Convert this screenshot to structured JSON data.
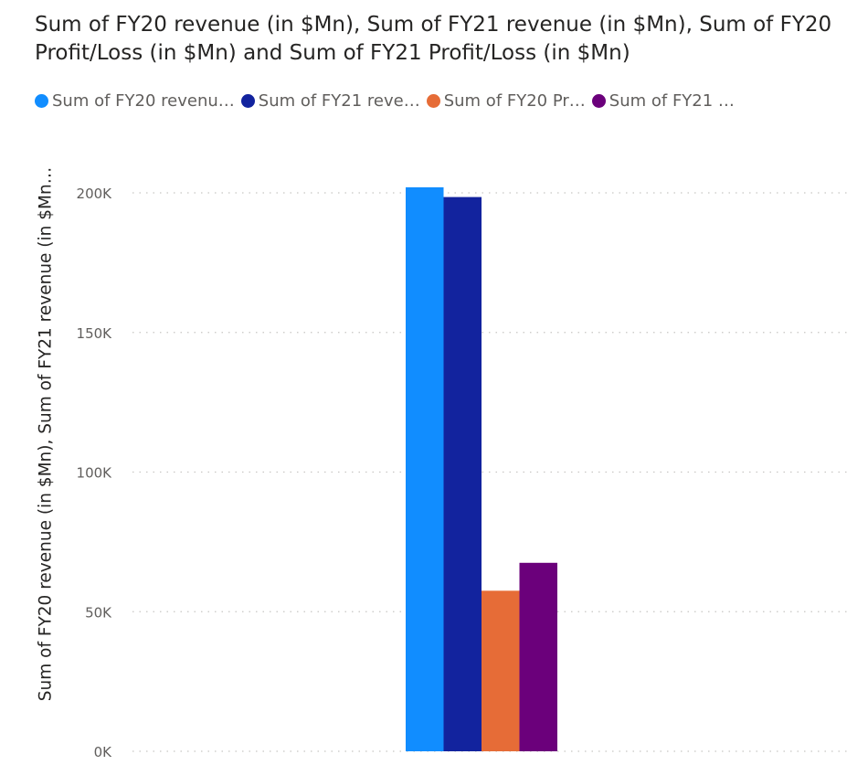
{
  "chart_data": {
    "type": "bar",
    "title": "Sum of FY20 revenue (in $Mn), Sum of FY21 revenue (in $Mn), Sum of FY20 Profit/Loss (in $Mn) and Sum of FY21 Profit/Loss (in $Mn)",
    "ylabel": "Sum of FY20 revenue (in $Mn), Sum of FY21 revenue (in $Mn…",
    "xlabel": "",
    "categories": [
      ""
    ],
    "series": [
      {
        "name": "Sum of FY20 revenu…",
        "color": "#118dff",
        "values": [
          202000
        ]
      },
      {
        "name": "Sum of FY21 reve…",
        "color": "#12239e",
        "values": [
          198500
        ]
      },
      {
        "name": "Sum of FY20 Pr…",
        "color": "#e66c37",
        "values": [
          57500
        ]
      },
      {
        "name": "Sum of FY21 …",
        "color": "#6b007b",
        "values": [
          67500
        ]
      }
    ],
    "ylim": [
      0,
      200000
    ],
    "yticks": [
      {
        "value": 0,
        "label": "0K"
      },
      {
        "value": 50000,
        "label": "50K"
      },
      {
        "value": 100000,
        "label": "100K"
      },
      {
        "value": 150000,
        "label": "150K"
      },
      {
        "value": 200000,
        "label": "200K"
      }
    ],
    "grid": true,
    "legend_position": "top-left"
  }
}
